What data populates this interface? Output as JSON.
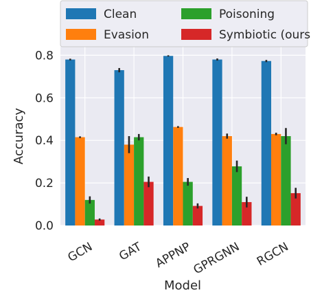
{
  "chart_data": {
    "type": "bar",
    "xlabel": "Model",
    "ylabel": "Accuracy",
    "ylim": [
      0,
      0.84
    ],
    "yticks": [
      "0.0",
      "0.2",
      "0.4",
      "0.6",
      "0.8"
    ],
    "grid": true,
    "legend_position": "top",
    "categories": [
      "GCN",
      "GAT",
      "APPNP",
      "GPRGNN",
      "RGCN"
    ],
    "series": [
      {
        "name": "Clean",
        "color": "#1f77b4",
        "values": [
          0.78,
          0.73,
          0.797,
          0.78,
          0.773
        ],
        "errors": [
          0.004,
          0.01,
          0.003,
          0.005,
          0.005
        ]
      },
      {
        "name": "Evasion",
        "color": "#ff7f0e",
        "values": [
          0.415,
          0.38,
          0.463,
          0.42,
          0.43
        ],
        "errors": [
          0.004,
          0.04,
          0.004,
          0.012,
          0.006
        ]
      },
      {
        "name": "Poisoning",
        "color": "#2ca02c",
        "values": [
          0.12,
          0.415,
          0.205,
          0.278,
          0.42
        ],
        "errors": [
          0.017,
          0.015,
          0.018,
          0.027,
          0.038
        ]
      },
      {
        "name": "Symbiotic (ours)",
        "color": "#d62728",
        "values": [
          0.028,
          0.205,
          0.092,
          0.11,
          0.152
        ],
        "errors": [
          0.005,
          0.025,
          0.012,
          0.025,
          0.025
        ]
      }
    ]
  }
}
